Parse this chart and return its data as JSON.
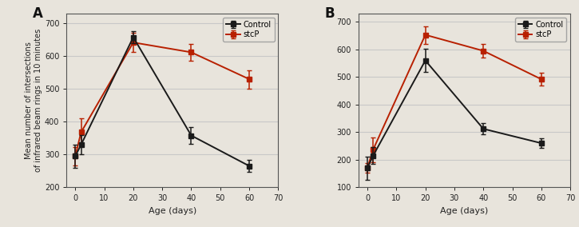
{
  "panel_A": {
    "label": "A",
    "x": [
      0,
      2,
      20,
      40,
      60
    ],
    "control_y": [
      295,
      330,
      658,
      358,
      265
    ],
    "control_err": [
      35,
      30,
      18,
      25,
      18
    ],
    "stcp_y": [
      295,
      368,
      642,
      612,
      530
    ],
    "stcp_err": [
      28,
      42,
      30,
      25,
      28
    ],
    "ylim": [
      200,
      730
    ],
    "yticks": [
      200,
      300,
      400,
      500,
      600,
      700
    ],
    "xlim": [
      -3,
      70
    ],
    "xticks": [
      0,
      10,
      20,
      30,
      40,
      50,
      60,
      70
    ]
  },
  "panel_B": {
    "label": "B",
    "x": [
      0,
      2,
      20,
      40,
      60
    ],
    "control_y": [
      170,
      215,
      560,
      312,
      260
    ],
    "control_err": [
      42,
      30,
      42,
      20,
      17
    ],
    "stcp_y": [
      170,
      237,
      653,
      595,
      492
    ],
    "stcp_err": [
      18,
      45,
      32,
      25,
      23
    ],
    "ylim": [
      100,
      730
    ],
    "yticks": [
      100,
      200,
      300,
      400,
      500,
      600,
      700
    ],
    "xlim": [
      -3,
      70
    ],
    "xticks": [
      0,
      10,
      20,
      30,
      40,
      50,
      60,
      70
    ]
  },
  "control_color": "#1a1a1a",
  "stcp_color": "#b82000",
  "ylabel": "Mean number of intersections\nof infrared beam rings in 10 minutes",
  "xlabel": "Age (days)",
  "legend_labels": [
    "Control",
    "stcP"
  ],
  "marker": "s",
  "linewidth": 1.4,
  "markersize": 4.5,
  "capsize": 2.5,
  "elinewidth": 1.1,
  "grid_color": "#c8c8c8",
  "bg_color": "#e8e4dc"
}
